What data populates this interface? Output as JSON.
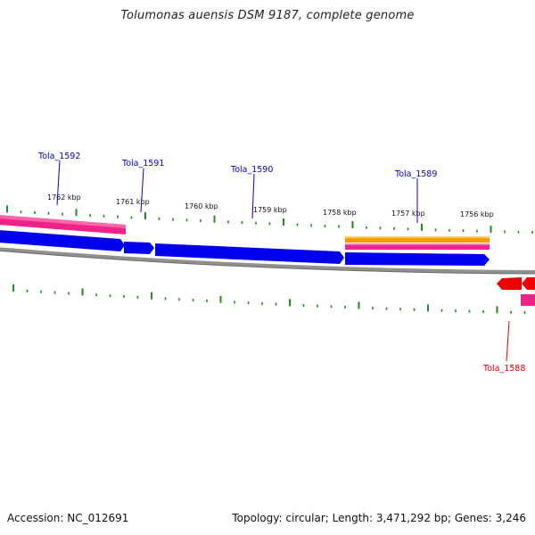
{
  "title": "Tolumonas auensis DSM 9187, complete genome",
  "footer": {
    "accession": "Accession: NC_012691",
    "stats": "Topology: circular; Length: 3,471,292 bp; Genes: 3,246"
  },
  "colors": {
    "cds": "#0000ee",
    "cds_highlight": "#5555ff",
    "rna": "#ee0000",
    "pink_track": "#ee2288",
    "orange_track": "#ff9900",
    "backbone": "#808080",
    "tick": "#228b22",
    "label_forward": "#0000cc",
    "label_reverse": "#dd0000"
  },
  "chart_data": {
    "type": "genome-map",
    "topology": "circular",
    "scale_labels": [
      "1762 kbp",
      "1761 kbp",
      "1760 kbp",
      "1759 kbp",
      "1758 kbp",
      "1757 kbp",
      "1756 kbp"
    ],
    "gene_labels": [
      {
        "name": "Tola_1592",
        "strand": "forward"
      },
      {
        "name": "Tola_1591",
        "strand": "forward"
      },
      {
        "name": "Tola_1590",
        "strand": "forward"
      },
      {
        "name": "Tola_1589",
        "strand": "forward"
      },
      {
        "name": "Tola_1588",
        "strand": "reverse"
      }
    ]
  }
}
